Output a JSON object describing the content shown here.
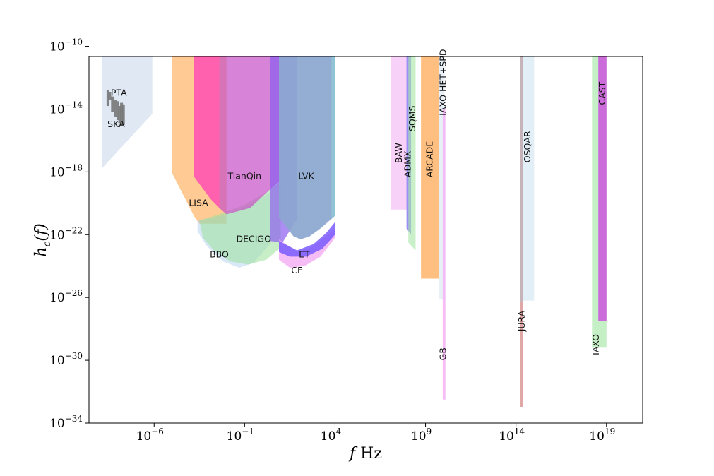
{
  "chart_data": {
    "type": "area",
    "title": "",
    "xlabel": "f Hz",
    "ylabel": "h_c(f)",
    "xscale": "log10",
    "yscale": "log10",
    "xlim_log10": [
      -9.6,
      21.0
    ],
    "ylim_log10": [
      -34,
      -10.65
    ],
    "x_ticks": [
      {
        "base": "10",
        "exp": "−6"
      },
      {
        "base": "10",
        "exp": "−1"
      },
      {
        "base": "10",
        "exp": "4"
      },
      {
        "base": "10",
        "exp": "9"
      },
      {
        "base": "10",
        "exp": "14"
      },
      {
        "base": "10",
        "exp": "19"
      }
    ],
    "x_tick_values_log10": [
      -6,
      -1,
      4,
      9,
      14,
      19
    ],
    "y_ticks": [
      {
        "base": "10",
        "exp": "−10"
      },
      {
        "base": "10",
        "exp": "−14"
      },
      {
        "base": "10",
        "exp": "−18"
      },
      {
        "base": "10",
        "exp": "−22"
      },
      {
        "base": "10",
        "exp": "−26"
      },
      {
        "base": "10",
        "exp": "−30"
      },
      {
        "base": "10",
        "exp": "−34"
      }
    ],
    "y_tick_values_log10": [
      -10,
      -14,
      -18,
      -22,
      -26,
      -30,
      -34
    ],
    "series": [
      {
        "name": "SKA",
        "color": "#c5d5ea",
        "opacity": 0.55,
        "polygon_log10": [
          [
            -8.9,
            -10.65
          ],
          [
            -6.1,
            -10.65
          ],
          [
            -6.1,
            -14.3
          ],
          [
            -8.9,
            -17.8
          ]
        ]
      },
      {
        "name": "LISA",
        "color": "#ffa64d",
        "opacity": 0.6,
        "polygon_log10": [
          [
            -5.0,
            -10.65
          ],
          [
            -2.0,
            -10.65
          ],
          [
            -2.0,
            -21.3
          ],
          [
            -3.5,
            -21.3
          ],
          [
            -3.8,
            -20.8
          ],
          [
            -5.0,
            -18.1
          ]
        ]
      },
      {
        "name": "BBO",
        "color": "#a9cceb",
        "opacity": 0.45,
        "polygon_log10": [
          [
            -3.6,
            -21.1
          ],
          [
            -2.3,
            -20.8
          ],
          [
            -0.8,
            -20.2
          ],
          [
            0.4,
            -19.3
          ],
          [
            0.4,
            -22.6
          ],
          [
            -0.5,
            -23.8
          ],
          [
            -1.3,
            -24.1
          ],
          [
            -2.2,
            -23.7
          ],
          [
            -3.1,
            -22.7
          ],
          [
            -3.6,
            -21.8
          ]
        ]
      },
      {
        "name": "DECIGO",
        "color": "#9be09b",
        "opacity": 0.55,
        "polygon_log10": [
          [
            -3.5,
            -21.1
          ],
          [
            -2.4,
            -20.7
          ],
          [
            -1.0,
            -20.1
          ],
          [
            0.2,
            -19.3
          ],
          [
            1.0,
            -18.6
          ],
          [
            1.0,
            -22.8
          ],
          [
            0.2,
            -23.6
          ],
          [
            -0.8,
            -23.9
          ],
          [
            -1.8,
            -23.7
          ],
          [
            -2.7,
            -23.0
          ],
          [
            -3.3,
            -22.2
          ]
        ]
      },
      {
        "name": "TianQin",
        "color": "#c64ec6",
        "opacity": 0.7,
        "polygon_log10": [
          [
            -2.4,
            -10.65
          ],
          [
            0.9,
            -10.65
          ],
          [
            0.9,
            -18.6
          ],
          [
            -0.7,
            -20.3
          ],
          [
            -2.0,
            -20.7
          ],
          [
            -2.4,
            -20.3
          ]
        ]
      },
      {
        "name": "TianQin-pink",
        "color": "#ff4fb3",
        "opacity": 0.85,
        "polygon_log10": [
          [
            -3.8,
            -10.65
          ],
          [
            -2.4,
            -10.65
          ],
          [
            -2.4,
            -20.3
          ],
          [
            -2.9,
            -19.7
          ],
          [
            -3.8,
            -18.3
          ]
        ]
      },
      {
        "name": "LVK-purple",
        "color": "#8a5cf0",
        "opacity": 0.7,
        "polygon_log10": [
          [
            0.4,
            -10.65
          ],
          [
            1.9,
            -10.65
          ],
          [
            1.9,
            -21.0
          ],
          [
            1.1,
            -22.5
          ],
          [
            0.4,
            -22.4
          ]
        ]
      },
      {
        "name": "CE",
        "color": "#f2a6f2",
        "opacity": 0.75,
        "polygon_log10": [
          [
            0.9,
            -22.3
          ],
          [
            1.9,
            -23.1
          ],
          [
            2.7,
            -22.8
          ],
          [
            3.5,
            -22.1
          ],
          [
            4.0,
            -21.6
          ],
          [
            4.0,
            -22.2
          ],
          [
            3.2,
            -23.4
          ],
          [
            2.3,
            -24.0
          ],
          [
            1.5,
            -24.1
          ],
          [
            0.9,
            -23.6
          ]
        ]
      },
      {
        "name": "ET",
        "color": "#7a5cff",
        "opacity": 0.85,
        "polygon_log10": [
          [
            0.9,
            -22.4
          ],
          [
            1.9,
            -23.0
          ],
          [
            2.8,
            -22.6
          ],
          [
            3.5,
            -21.9
          ],
          [
            4.0,
            -21.2
          ],
          [
            4.0,
            -22.0
          ],
          [
            3.3,
            -22.9
          ],
          [
            2.4,
            -23.4
          ],
          [
            1.5,
            -23.4
          ],
          [
            0.9,
            -23.1
          ]
        ]
      },
      {
        "name": "LVK",
        "color": "#8ba6cf",
        "opacity": 0.92,
        "polygon_log10": [
          [
            0.9,
            -10.65
          ],
          [
            4.0,
            -10.65
          ],
          [
            4.0,
            -20.8
          ],
          [
            3.2,
            -21.6
          ],
          [
            2.6,
            -22.1
          ],
          [
            2.1,
            -22.3
          ],
          [
            1.7,
            -22.1
          ],
          [
            1.3,
            -21.5
          ],
          [
            0.9,
            -20.9
          ]
        ]
      },
      {
        "name": "LVK-edge",
        "color": "#8fd0d8",
        "opacity": 0.6,
        "polygon_log10": [
          [
            3.8,
            -10.65
          ],
          [
            4.0,
            -10.65
          ],
          [
            4.0,
            -20.8
          ],
          [
            3.8,
            -21.0
          ]
        ]
      },
      {
        "name": "BAW",
        "color": "#f2b2f2",
        "opacity": 0.6,
        "polygon_log10": [
          [
            7.1,
            -10.65
          ],
          [
            8.0,
            -10.65
          ],
          [
            8.0,
            -20.4
          ],
          [
            7.1,
            -20.4
          ]
        ]
      },
      {
        "name": "ADMX",
        "color": "#7a6cf0",
        "opacity": 0.75,
        "polygon_log10": [
          [
            7.95,
            -10.65
          ],
          [
            8.2,
            -10.65
          ],
          [
            8.2,
            -22.0
          ],
          [
            7.95,
            -21.6
          ]
        ]
      },
      {
        "name": "SQMS",
        "color": "#a6e6a6",
        "opacity": 0.6,
        "polygon_log10": [
          [
            8.05,
            -10.65
          ],
          [
            8.45,
            -10.65
          ],
          [
            8.45,
            -23.0
          ],
          [
            8.05,
            -22.5
          ]
        ]
      },
      {
        "name": "ARCADE",
        "color": "#ffaa55",
        "opacity": 0.75,
        "polygon_log10": [
          [
            8.75,
            -10.65
          ],
          [
            9.75,
            -10.65
          ],
          [
            9.75,
            -24.8
          ],
          [
            8.75,
            -24.8
          ]
        ]
      },
      {
        "name": "IAXO HET+SPD",
        "color": "#d8e6f2",
        "opacity": 0.6,
        "polygon_log10": [
          [
            9.75,
            -10.65
          ],
          [
            10.05,
            -10.65
          ],
          [
            10.05,
            -26.1
          ],
          [
            9.75,
            -26.1
          ]
        ]
      },
      {
        "name": "GB",
        "color": "#f4b2f4",
        "opacity": 0.85,
        "polygon_log10": [
          [
            9.95,
            -14.0
          ],
          [
            10.1,
            -14.0
          ],
          [
            10.1,
            -32.5
          ],
          [
            9.95,
            -32.5
          ]
        ]
      },
      {
        "name": "OSQAR",
        "color": "#d6e8f4",
        "opacity": 0.7,
        "polygon_log10": [
          [
            14.3,
            -10.65
          ],
          [
            15.0,
            -10.65
          ],
          [
            15.0,
            -26.2
          ],
          [
            14.3,
            -26.2
          ]
        ]
      },
      {
        "name": "JURA",
        "color": "#d68a8a",
        "opacity": 0.75,
        "polygon_log10": [
          [
            14.23,
            -10.65
          ],
          [
            14.37,
            -10.65
          ],
          [
            14.37,
            -33.0
          ],
          [
            14.23,
            -33.0
          ]
        ]
      },
      {
        "name": "JURA-upper",
        "color": "#bdb8c2",
        "opacity": 0.75,
        "polygon_log10": [
          [
            14.23,
            -10.65
          ],
          [
            14.37,
            -10.65
          ],
          [
            14.37,
            -26.3
          ],
          [
            14.23,
            -26.3
          ]
        ]
      },
      {
        "name": "IAXO",
        "color": "#a6e6a6",
        "opacity": 0.65,
        "polygon_log10": [
          [
            18.2,
            -10.65
          ],
          [
            19.0,
            -10.65
          ],
          [
            19.0,
            -29.2
          ],
          [
            18.2,
            -29.2
          ]
        ]
      },
      {
        "name": "CAST",
        "color": "#cc55dd",
        "opacity": 0.85,
        "polygon_log10": [
          [
            18.55,
            -10.65
          ],
          [
            19.0,
            -10.65
          ],
          [
            19.0,
            -27.5
          ],
          [
            18.55,
            -27.5
          ]
        ]
      },
      {
        "name": "PTA",
        "color": "#777777",
        "opacity": 0.9,
        "bars_log10": [
          [
            -8.55,
            -12.8,
            -13.8
          ],
          [
            -8.45,
            -12.9,
            -13.4
          ],
          [
            -8.3,
            -13.2,
            -14.2
          ],
          [
            -8.15,
            -13.4,
            -14.5
          ],
          [
            -8.0,
            -13.5,
            -14.7
          ],
          [
            -7.9,
            -13.8,
            -14.9
          ],
          [
            -7.8,
            -13.6,
            -15.1
          ],
          [
            -7.7,
            -13.7,
            -15.0
          ]
        ]
      }
    ],
    "labels": [
      {
        "text": "PTA",
        "at_log10": [
          -7.95,
          -13.0
        ],
        "rotate": 0
      },
      {
        "text": "SKA",
        "at_log10": [
          -8.1,
          -15.0
        ],
        "rotate": 0
      },
      {
        "text": "LISA",
        "at_log10": [
          -3.55,
          -20.0
        ],
        "rotate": 0
      },
      {
        "text": "TianQin",
        "at_log10": [
          -1.0,
          -18.3
        ],
        "rotate": 0
      },
      {
        "text": "LVK",
        "at_log10": [
          2.4,
          -18.3
        ],
        "rotate": 0
      },
      {
        "text": "DECIGO",
        "at_log10": [
          -0.5,
          -22.3
        ],
        "rotate": 0
      },
      {
        "text": "BBO",
        "at_log10": [
          -2.4,
          -23.3
        ],
        "rotate": 0
      },
      {
        "text": "ET",
        "at_log10": [
          2.3,
          -23.3
        ],
        "rotate": 0
      },
      {
        "text": "CE",
        "at_log10": [
          1.9,
          -24.3
        ],
        "rotate": 0
      },
      {
        "text": "BAW",
        "at_log10": [
          7.55,
          -16.8
        ],
        "rotate": -90
      },
      {
        "text": "ADMX",
        "at_log10": [
          8.05,
          -17.5
        ],
        "rotate": -90
      },
      {
        "text": "SQMS",
        "at_log10": [
          8.3,
          -14.6
        ],
        "rotate": -90
      },
      {
        "text": "ARCADE",
        "at_log10": [
          9.25,
          -17.2
        ],
        "rotate": -90
      },
      {
        "text": "IAXO HET+SPD",
        "at_log10": [
          10.0,
          -12.3
        ],
        "rotate": -90
      },
      {
        "text": "GB",
        "at_log10": [
          10.0,
          -29.6
        ],
        "rotate": -90
      },
      {
        "text": "OSQAR",
        "at_log10": [
          14.65,
          -16.4
        ],
        "rotate": -90
      },
      {
        "text": "JURA",
        "at_log10": [
          14.35,
          -27.5
        ],
        "rotate": -90
      },
      {
        "text": "CAST",
        "at_log10": [
          18.8,
          -13.0
        ],
        "rotate": -90
      },
      {
        "text": "IAXO",
        "at_log10": [
          18.45,
          -29.0
        ],
        "rotate": -90
      }
    ],
    "ylabel_text": {
      "h": "h",
      "sub": "c",
      "arg": "(f)"
    },
    "xlabel_text": {
      "f": "f",
      "unit": " Hz"
    }
  }
}
